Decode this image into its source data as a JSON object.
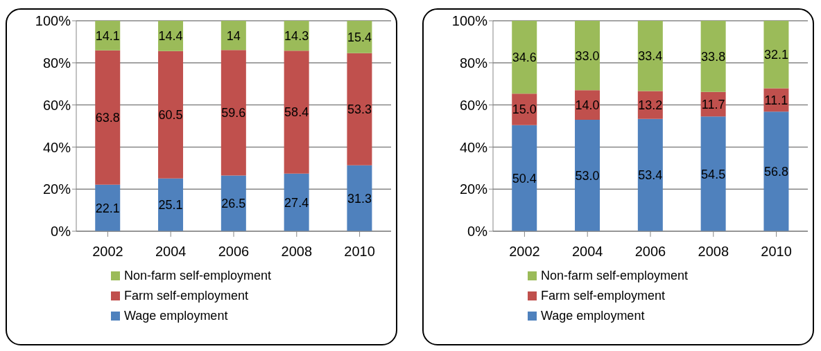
{
  "chart_data": [
    {
      "type": "bar",
      "stacked": true,
      "categories": [
        "2002",
        "2004",
        "2006",
        "2008",
        "2010"
      ],
      "series": [
        {
          "name": "Wage employment",
          "color": "#4f81bd",
          "values": [
            22.1,
            25.1,
            26.5,
            27.4,
            31.3
          ],
          "value_labels": [
            "22.1",
            "25.1",
            "26.5",
            "27.4",
            "31.3"
          ]
        },
        {
          "name": "Farm self-employment",
          "color": "#c0504d",
          "values": [
            63.8,
            60.5,
            59.6,
            58.4,
            53.3
          ],
          "value_labels": [
            "63.8",
            "60.5",
            "59.6",
            "58.4",
            "53.3"
          ]
        },
        {
          "name": "Non-farm self-employment",
          "color": "#9bbb59",
          "values": [
            14.1,
            14.4,
            14,
            14.3,
            15.4
          ],
          "value_labels": [
            "14.1",
            "14.4",
            "14",
            "14.3",
            "15.4"
          ]
        }
      ],
      "ylim": [
        0,
        100
      ],
      "yticks": [
        {
          "value": 0,
          "label": "0%"
        },
        {
          "value": 20,
          "label": "20%"
        },
        {
          "value": 40,
          "label": "40%"
        },
        {
          "value": 60,
          "label": "60%"
        },
        {
          "value": 80,
          "label": "80%"
        },
        {
          "value": 100,
          "label": "100%"
        }
      ],
      "grid": "y",
      "legend": "bottom"
    },
    {
      "type": "bar",
      "stacked": true,
      "categories": [
        "2002",
        "2004",
        "2006",
        "2008",
        "2010"
      ],
      "series": [
        {
          "name": "Wage employment",
          "color": "#4f81bd",
          "values": [
            50.4,
            53.0,
            53.4,
            54.5,
            56.8
          ],
          "value_labels": [
            "50.4",
            "53.0",
            "53.4",
            "54.5",
            "56.8"
          ]
        },
        {
          "name": "Farm self-employment",
          "color": "#c0504d",
          "values": [
            15.0,
            14.0,
            13.2,
            11.7,
            11.1
          ],
          "value_labels": [
            "15.0",
            "14.0",
            "13.2",
            "11.7",
            "11.1"
          ]
        },
        {
          "name": "Non-farm self-employment",
          "color": "#9bbb59",
          "values": [
            34.6,
            33.0,
            33.4,
            33.8,
            32.1
          ],
          "value_labels": [
            "34.6",
            "33.0",
            "33.4",
            "33.8",
            "32.1"
          ]
        }
      ],
      "ylim": [
        0,
        100
      ],
      "yticks": [
        {
          "value": 0,
          "label": "0%"
        },
        {
          "value": 20,
          "label": "20%"
        },
        {
          "value": 40,
          "label": "40%"
        },
        {
          "value": 60,
          "label": "60%"
        },
        {
          "value": 80,
          "label": "80%"
        },
        {
          "value": 100,
          "label": "100%"
        }
      ],
      "grid": "y",
      "legend": "bottom"
    }
  ]
}
